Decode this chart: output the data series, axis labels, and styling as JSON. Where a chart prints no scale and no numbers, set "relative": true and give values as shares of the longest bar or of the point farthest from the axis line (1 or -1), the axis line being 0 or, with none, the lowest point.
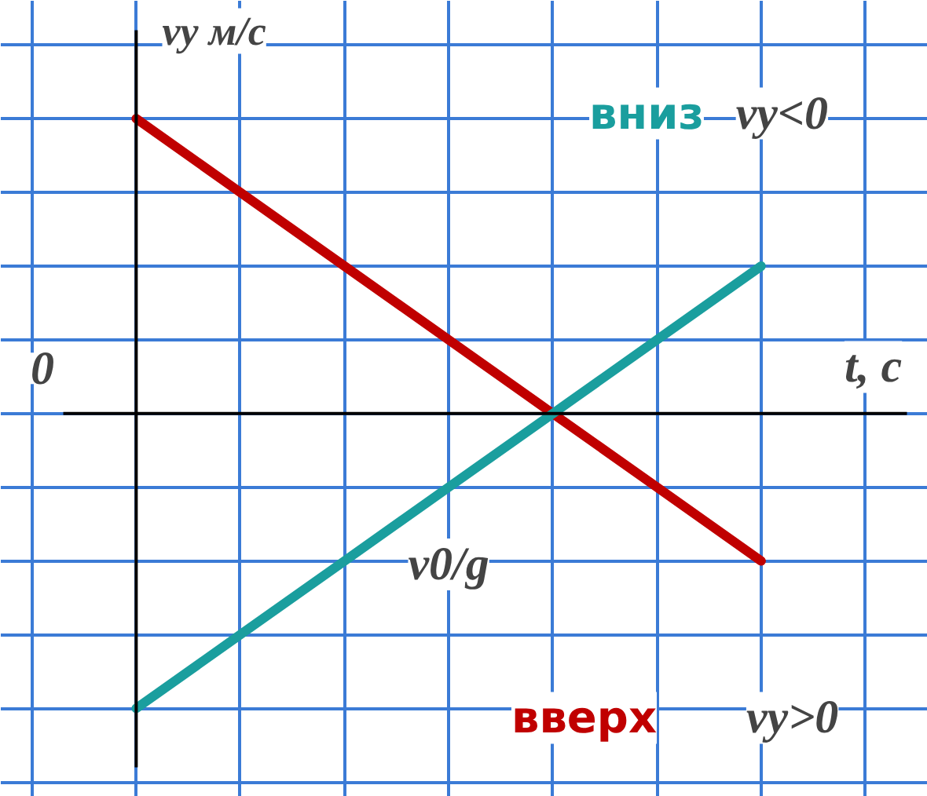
{
  "chart_data": {
    "type": "line",
    "relative": true,
    "grid": true,
    "xlabel": "t, с",
    "ylabel": "vy м/с",
    "categories": [
      null,
      null,
      null,
      null,
      null,
      null,
      null
    ],
    "series": [
      {
        "name": "вверх",
        "color": "#c00000",
        "values": [
          1,
          0.75,
          0.5,
          0.25,
          0,
          -0.25,
          -0.5
        ]
      },
      {
        "name": "вниз",
        "color": "#1a9e9e",
        "values": [
          -1,
          -0.75,
          -0.5,
          -0.25,
          0,
          0.25,
          0.5
        ]
      }
    ],
    "annotations": [
      "0",
      "vy<0",
      "vy>0",
      "v0/g"
    ]
  }
}
